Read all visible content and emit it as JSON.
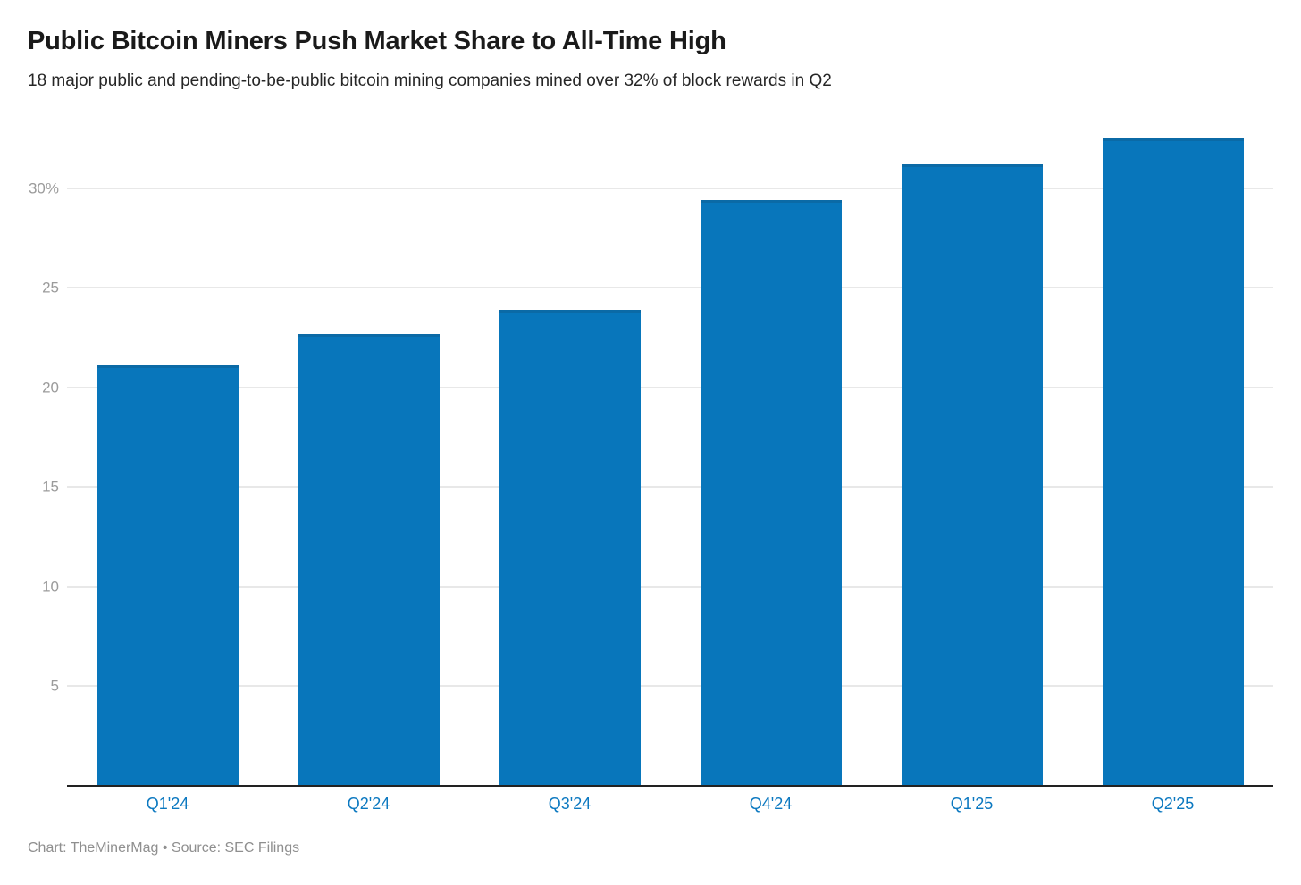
{
  "header": {
    "title": "Public Bitcoin Miners Push Market Share to All-Time High",
    "subtitle": "18 major public and pending-to-be-public bitcoin mining companies mined over 32% of block rewards in Q2"
  },
  "chart_data": {
    "type": "bar",
    "title": "Public Bitcoin Miners Push Market Share to All-Time High",
    "subtitle": "18 major public and pending-to-be-public bitcoin mining companies mined over 32% of block rewards in Q2",
    "categories": [
      "Q1'24",
      "Q2'24",
      "Q3'24",
      "Q4'24",
      "Q1'25",
      "Q2'25"
    ],
    "values": [
      21.1,
      22.7,
      23.9,
      29.4,
      31.2,
      32.5
    ],
    "unit": "%",
    "xlabel": "",
    "ylabel": "",
    "ylim": [
      0,
      32.5
    ],
    "yticks": [
      {
        "value": 5,
        "label": "5"
      },
      {
        "value": 10,
        "label": "10"
      },
      {
        "value": 15,
        "label": "15"
      },
      {
        "value": 20,
        "label": "20"
      },
      {
        "value": 25,
        "label": "25"
      },
      {
        "value": 30,
        "label": "30%"
      }
    ],
    "grid": "horizontal",
    "legend": "none",
    "colors": {
      "bar": "#0876bb",
      "bar_top_edge": "#0b6aa6",
      "x_tick_label": "#0b78c0",
      "y_tick_label": "#9b9b9b",
      "gridline": "#e8e8e8",
      "axis_line": "#222222"
    }
  },
  "footer": {
    "text": "Chart: TheMinerMag • Source: SEC Filings"
  }
}
